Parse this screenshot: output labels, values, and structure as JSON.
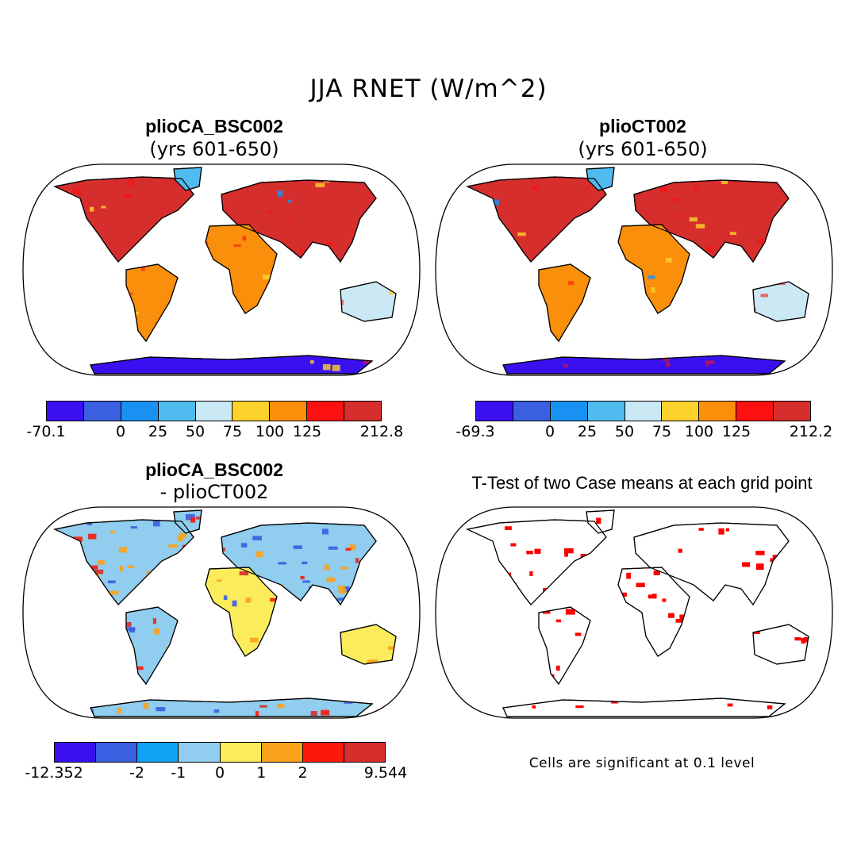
{
  "figure": {
    "title": "JJA RNET (W/m^2)"
  },
  "panels": [
    {
      "id": "top-left",
      "title": "plioCA_BSC002",
      "subtitle": "(yrs 601-650)",
      "colorbar": {
        "colors": [
          "#3b10f0",
          "#3a5fe0",
          "#1991f2",
          "#50bbee",
          "#cbe9f5",
          "#fdd12c",
          "#fa8f0c",
          "#fb1111",
          "#d62d2d"
        ],
        "labels": [
          "-70.1",
          "0",
          "25",
          "50",
          "75",
          "100",
          "125",
          "212.8"
        ],
        "label_positions": [
          0,
          2,
          3,
          4,
          5,
          6,
          7,
          9
        ]
      }
    },
    {
      "id": "top-right",
      "title": "plioCT002",
      "subtitle": "(yrs 601-650)",
      "colorbar": {
        "colors": [
          "#3b10f0",
          "#3a5fe0",
          "#1991f2",
          "#50bbee",
          "#cbe9f5",
          "#fdd12c",
          "#fa8f0c",
          "#fb1111",
          "#d62d2d"
        ],
        "labels": [
          "-69.3",
          "0",
          "25",
          "50",
          "75",
          "100",
          "125",
          "212.2"
        ],
        "label_positions": [
          0,
          2,
          3,
          4,
          5,
          6,
          7,
          9
        ]
      }
    },
    {
      "id": "bottom-left",
      "title": "plioCA_BSC002",
      "subtitle": "- plioCT002",
      "colorbar": {
        "colors": [
          "#3b10f0",
          "#3a5fe0",
          "#10a0f4",
          "#90cdee",
          "#fbec5b",
          "#fba21a",
          "#fb1a0a",
          "#d62d2d"
        ],
        "labels": [
          "-12.352",
          "-2",
          "-1",
          "0",
          "1",
          "2",
          "9.544"
        ],
        "label_positions": [
          0,
          2,
          3,
          4,
          5,
          6,
          8
        ]
      }
    },
    {
      "id": "bottom-right",
      "title": "T-Test of two Case means at each grid point",
      "note": "Cells are significant at 0.1 level",
      "significance_color": "#ff0000"
    }
  ]
}
